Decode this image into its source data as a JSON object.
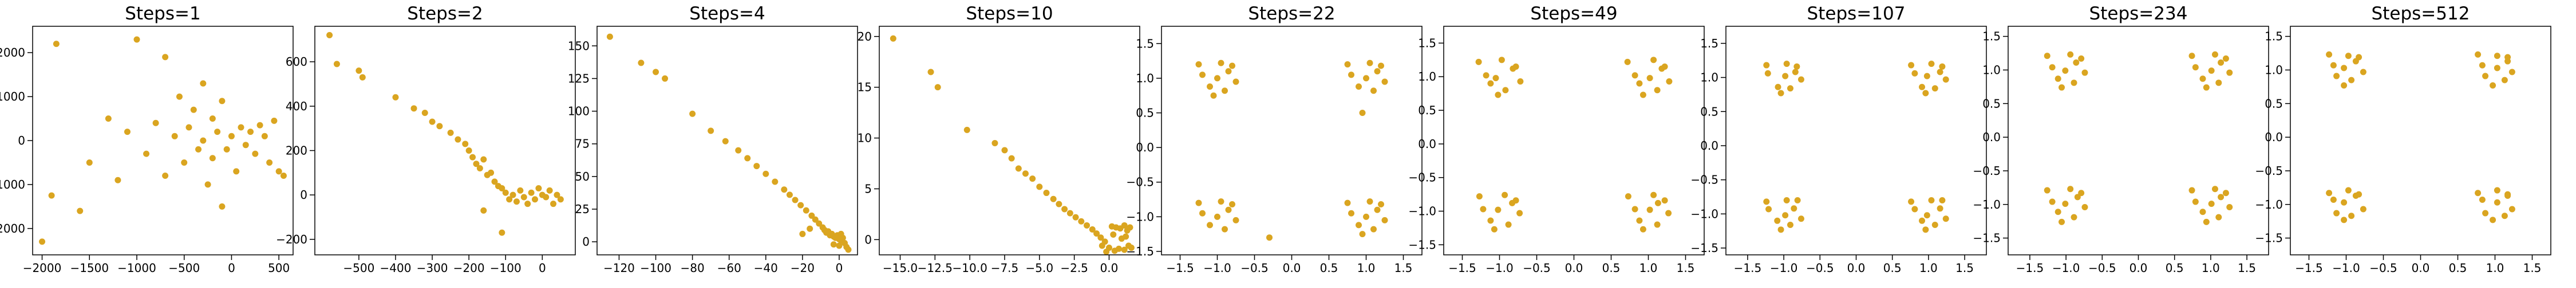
{
  "chart_data": [
    {
      "type": "scatter",
      "title": "Steps=1",
      "color": "#daa520",
      "xlim": [
        -2100,
        650
      ],
      "ylim": [
        -2600,
        2600
      ],
      "xticks": [
        {
          "value": -2000,
          "label": "−2000"
        },
        {
          "value": -1500,
          "label": "−1500"
        },
        {
          "value": -1000,
          "label": "−1000"
        },
        {
          "value": -500,
          "label": "−500"
        },
        0,
        500
      ],
      "yticks": [
        {
          "value": -2000,
          "label": "−2000"
        },
        {
          "value": -1000,
          "label": "−1000"
        },
        0,
        1000,
        2000
      ],
      "x": [
        -2000,
        -1850,
        -1000,
        -700,
        -1600,
        -1900,
        -1300,
        -1200,
        -900,
        -800,
        -700,
        -600,
        -550,
        -500,
        -450,
        -400,
        -350,
        -300,
        -300,
        -250,
        -200,
        -200,
        -150,
        -100,
        -100,
        -50,
        0,
        50,
        100,
        150,
        200,
        250,
        300,
        350,
        400,
        450,
        500,
        550,
        -1500,
        -1100
      ],
      "y": [
        -2300,
        2200,
        2300,
        1900,
        -1600,
        -1250,
        500,
        -900,
        -300,
        400,
        -800,
        100,
        1000,
        -500,
        300,
        700,
        -200,
        1300,
        0,
        -1000,
        500,
        -400,
        200,
        -1500,
        900,
        -200,
        100,
        -700,
        300,
        -100,
        200,
        -300,
        350,
        100,
        -500,
        450,
        -700,
        -800,
        -500,
        200
      ]
    },
    {
      "type": "scatter",
      "title": "Steps=2",
      "color": "#daa520",
      "xlim": [
        -620,
        90
      ],
      "ylim": [
        -270,
        760
      ],
      "xticks": [
        {
          "value": -500,
          "label": "−500"
        },
        {
          "value": -400,
          "label": "−400"
        },
        {
          "value": -300,
          "label": "−300"
        },
        {
          "value": -200,
          "label": "−200"
        },
        {
          "value": -100,
          "label": "−100"
        },
        0
      ],
      "yticks": [
        {
          "value": -200,
          "label": "−200"
        },
        0,
        200,
        400,
        600
      ],
      "x": [
        -580,
        -560,
        -500,
        -490,
        -400,
        -350,
        -320,
        -300,
        -280,
        -250,
        -230,
        -210,
        -200,
        -190,
        -180,
        -170,
        -160,
        -150,
        -140,
        -130,
        -120,
        -110,
        -100,
        -90,
        -80,
        -70,
        -60,
        -50,
        -40,
        -30,
        -20,
        -10,
        0,
        10,
        20,
        30,
        40,
        50,
        -160,
        -110
      ],
      "y": [
        720,
        590,
        560,
        530,
        440,
        390,
        370,
        330,
        310,
        280,
        250,
        230,
        200,
        170,
        140,
        120,
        160,
        90,
        100,
        60,
        40,
        30,
        10,
        -20,
        0,
        -30,
        20,
        -10,
        -40,
        10,
        -20,
        30,
        0,
        -10,
        20,
        -40,
        0,
        -20,
        -70,
        -170
      ]
    },
    {
      "type": "scatter",
      "title": "Steps=4",
      "color": "#daa520",
      "xlim": [
        -132,
        10
      ],
      "ylim": [
        -10,
        165
      ],
      "xticks": [
        {
          "value": -120,
          "label": "−120"
        },
        {
          "value": -100,
          "label": "−100"
        },
        {
          "value": -80,
          "label": "−80"
        },
        {
          "value": -60,
          "label": "−60"
        },
        {
          "value": -40,
          "label": "−40"
        },
        {
          "value": -20,
          "label": "−20"
        },
        0
      ],
      "yticks": [
        0,
        25,
        50,
        75,
        100,
        125,
        150
      ],
      "x": [
        -125,
        -108,
        -100,
        -95,
        -80,
        -70,
        -62,
        -55,
        -50,
        -45,
        -40,
        -35,
        -30,
        -27,
        -24,
        -21,
        -18,
        -15,
        -13,
        -11,
        -9,
        -8,
        -7,
        -6,
        -5,
        -4,
        -3,
        -2,
        -1,
        0,
        1,
        2,
        3,
        4,
        5,
        -20,
        -16,
        -3,
        0,
        1
      ],
      "y": [
        157,
        137,
        130,
        125,
        98,
        85,
        77,
        70,
        64,
        58,
        52,
        46,
        40,
        36,
        32,
        28,
        24,
        20,
        17,
        14,
        11,
        9,
        7,
        8,
        5,
        6,
        4,
        3,
        5,
        2,
        1,
        3,
        -1,
        -4,
        -6,
        6,
        10,
        -2,
        -3,
        6
      ]
    },
    {
      "type": "scatter",
      "title": "Steps=10",
      "color": "#daa520",
      "xlim": [
        -16.5,
        2.2
      ],
      "ylim": [
        -1.5,
        21
      ],
      "xticks": [
        {
          "value": -15,
          "label": "−15.0"
        },
        {
          "value": -12.5,
          "label": "−12.5"
        },
        {
          "value": -10,
          "label": "−10.0"
        },
        {
          "value": -7.5,
          "label": "−7.5"
        },
        {
          "value": -5,
          "label": "−5.0"
        },
        {
          "value": -2.5,
          "label": "−2.5"
        },
        {
          "value": 0,
          "label": "0.0"
        }
      ],
      "yticks": [
        0,
        5,
        10,
        15,
        20
      ],
      "x": [
        -15.5,
        -12.8,
        -12.3,
        -10.2,
        -8.2,
        -7.5,
        -7,
        -6.5,
        -6,
        -5.5,
        -5,
        -4.5,
        -4,
        -3.6,
        -3.2,
        -2.8,
        -2.4,
        -2,
        -1.6,
        -1.2,
        -0.9,
        -0.6,
        -0.3,
        0,
        0.2,
        0.5,
        0.8,
        1.1,
        1.3,
        1.5,
        1.4,
        1.1,
        0.7,
        0.4,
        1.6,
        -0.2,
        0.9,
        1.2,
        -0.5,
        0.3
      ],
      "y": [
        19.8,
        16.5,
        15,
        10.8,
        9.5,
        8.8,
        8,
        7,
        6.5,
        6,
        5.2,
        4.6,
        4,
        3.5,
        3,
        2.6,
        2.2,
        1.8,
        1.4,
        1,
        0.6,
        0.2,
        -0.2,
        -0.8,
        1.3,
        1.2,
        1.1,
        1.4,
        0.9,
        1.2,
        -0.6,
        -1,
        -0.9,
        -1.1,
        -0.8,
        -1.2,
        0.1,
        0.3,
        -0.6,
        0.5
      ]
    },
    {
      "type": "scatter",
      "title": "Steps=22",
      "color": "#daa520",
      "xlim": [
        -1.75,
        1.75
      ],
      "ylim": [
        -1.55,
        1.75
      ],
      "xticks": [
        {
          "value": -1.5,
          "label": "−1.5"
        },
        {
          "value": -1,
          "label": "−1.0"
        },
        {
          "value": -0.5,
          "label": "−0.5"
        },
        {
          "value": 0,
          "label": "0.0"
        },
        0.5,
        {
          "value": 1,
          "label": "1.0"
        },
        1.5
      ],
      "yticks": [
        {
          "value": -1.5,
          "label": "−1.5"
        },
        {
          "value": -1,
          "label": "−1.0"
        },
        {
          "value": -0.5,
          "label": "−0.5"
        },
        {
          "value": 0,
          "label": "0.0"
        },
        0.5,
        {
          "value": 1,
          "label": "1.0"
        },
        1.5
      ],
      "x": [
        -1.0,
        -0.85,
        -1.2,
        -0.9,
        -1.1,
        -0.75,
        -1.25,
        -0.95,
        -1.05,
        -0.8,
        1.0,
        1.15,
        0.8,
        1.1,
        0.9,
        1.25,
        0.75,
        1.05,
        0.95,
        1.2,
        -1.0,
        -0.85,
        -1.2,
        -0.9,
        -1.1,
        -0.75,
        -1.25,
        -0.95,
        -0.3,
        -0.8,
        1.0,
        1.15,
        0.8,
        1.1,
        0.9,
        1.25,
        0.75,
        1.05,
        0.95,
        1.2
      ],
      "y": [
        1.0,
        1.1,
        1.05,
        0.82,
        0.88,
        0.95,
        1.2,
        1.22,
        0.75,
        1.18,
        1.0,
        1.1,
        1.05,
        0.82,
        0.88,
        0.95,
        1.2,
        1.22,
        0.5,
        1.18,
        -1.0,
        -0.9,
        -0.95,
        -1.18,
        -1.12,
        -1.05,
        -0.8,
        -0.78,
        -1.3,
        -0.82,
        -1.0,
        -0.9,
        -0.95,
        -1.18,
        -1.12,
        -1.05,
        -0.8,
        -0.78,
        -1.25,
        -0.82
      ]
    },
    {
      "type": "scatter",
      "title": "Steps=49",
      "color": "#daa520",
      "xlim": [
        -1.75,
        1.75
      ],
      "ylim": [
        -1.65,
        1.75
      ],
      "xticks": [
        {
          "value": -1.5,
          "label": "−1.5"
        },
        {
          "value": -1,
          "label": "−1.0"
        },
        {
          "value": -0.5,
          "label": "−0.5"
        },
        {
          "value": 0,
          "label": "0.0"
        },
        0.5,
        {
          "value": 1,
          "label": "1.0"
        },
        1.5
      ],
      "yticks": [
        {
          "value": -1.5,
          "label": "−1.5"
        },
        {
          "value": -1,
          "label": "−1.0"
        },
        {
          "value": -0.5,
          "label": "−0.5"
        },
        {
          "value": 0,
          "label": "0.0"
        },
        0.5,
        {
          "value": 1,
          "label": "1.0"
        },
        1.5
      ],
      "x": [
        -1.05,
        -0.82,
        -1.18,
        -0.92,
        -1.12,
        -0.72,
        -1.28,
        -0.97,
        -1.02,
        -0.78,
        1.02,
        1.18,
        0.82,
        1.12,
        0.88,
        1.28,
        0.72,
        1.07,
        0.93,
        1.22,
        -1.02,
        -0.83,
        -1.22,
        -0.88,
        -1.12,
        -0.73,
        -1.27,
        -0.93,
        -1.07,
        -0.78,
        1.02,
        1.13,
        0.82,
        1.12,
        0.88,
        1.27,
        0.73,
        1.07,
        0.93,
        1.22
      ],
      "y": [
        0.98,
        1.12,
        1.02,
        0.8,
        0.9,
        0.93,
        1.22,
        1.25,
        0.73,
        1.15,
        0.98,
        1.12,
        1.02,
        0.8,
        0.9,
        0.93,
        1.22,
        1.25,
        0.73,
        1.15,
        -0.98,
        -0.88,
        -0.97,
        -1.2,
        -1.14,
        -1.03,
        -0.78,
        -0.76,
        -1.27,
        -0.84,
        -0.98,
        -0.88,
        -0.97,
        -1.2,
        -1.14,
        -1.03,
        -0.78,
        -0.76,
        -1.27,
        -0.84
      ]
    },
    {
      "type": "scatter",
      "title": "Steps=107",
      "color": "#daa520",
      "xlim": [
        -1.8,
        1.8
      ],
      "ylim": [
        -1.6,
        1.75
      ],
      "xticks": [
        {
          "value": -1.5,
          "label": "−1.5"
        },
        {
          "value": -1,
          "label": "−1.0"
        },
        {
          "value": -0.5,
          "label": "−0.5"
        },
        {
          "value": 0,
          "label": "0.0"
        },
        0.5,
        {
          "value": 1,
          "label": "1.0"
        },
        1.5
      ],
      "yticks": [
        {
          "value": -1.5,
          "label": "−1.5"
        },
        {
          "value": -1,
          "label": "−1.0"
        },
        {
          "value": -0.5,
          "label": "−0.5"
        },
        {
          "value": 0,
          "label": "0.0"
        },
        0.5,
        {
          "value": 1,
          "label": "1.0"
        },
        1.5
      ],
      "x": [
        -0.98,
        -0.84,
        -1.22,
        -0.91,
        -1.08,
        -0.76,
        -1.24,
        -0.96,
        -1.04,
        -0.82,
        0.98,
        1.16,
        0.81,
        1.09,
        0.91,
        1.24,
        0.76,
        1.04,
        0.96,
        1.19,
        -0.98,
        -0.86,
        -1.21,
        -0.91,
        -1.09,
        -0.76,
        -1.24,
        -0.96,
        -1.04,
        -0.81,
        0.98,
        1.16,
        0.81,
        1.09,
        0.91,
        1.24,
        0.76,
        1.04,
        0.96,
        1.19
      ],
      "y": [
        1.02,
        1.08,
        1.06,
        0.84,
        0.86,
        0.97,
        1.18,
        1.2,
        0.77,
        1.16,
        1.02,
        1.08,
        1.06,
        0.84,
        0.86,
        0.97,
        1.18,
        1.2,
        0.77,
        1.16,
        -1.02,
        -0.92,
        -0.93,
        -1.16,
        -1.1,
        -1.07,
        -0.82,
        -0.8,
        -1.23,
        -0.8,
        -1.02,
        -0.92,
        -0.93,
        -1.16,
        -1.1,
        -1.07,
        -0.82,
        -0.8,
        -1.23,
        -0.8
      ]
    },
    {
      "type": "scatter",
      "title": "Steps=234",
      "color": "#daa520",
      "xlim": [
        -1.8,
        1.8
      ],
      "ylim": [
        -1.75,
        1.65
      ],
      "xticks": [
        {
          "value": -1.5,
          "label": "−1.5"
        },
        {
          "value": -1,
          "label": "−1.0"
        },
        {
          "value": -0.5,
          "label": "−0.5"
        },
        {
          "value": 0,
          "label": "0.0"
        },
        0.5,
        {
          "value": 1,
          "label": "1.0"
        },
        1.5
      ],
      "yticks": [
        {
          "value": -1.5,
          "label": "−1.5"
        },
        {
          "value": -1,
          "label": "−1.0"
        },
        {
          "value": -0.5,
          "label": "−0.5"
        },
        {
          "value": 0,
          "label": "0.0"
        },
        0.5,
        {
          "value": 1,
          "label": "1.0"
        },
        1.5
      ],
      "x": [
        -1.01,
        -0.86,
        -1.19,
        -0.89,
        -1.11,
        -0.74,
        -1.26,
        -0.94,
        -1.06,
        -0.79,
        1.01,
        1.14,
        0.79,
        1.11,
        0.89,
        1.26,
        0.74,
        1.06,
        0.94,
        1.21,
        -1.01,
        -0.84,
        -1.19,
        -0.89,
        -1.11,
        -0.74,
        -1.26,
        -0.94,
        -1.06,
        -0.79,
        1.01,
        1.14,
        0.79,
        1.11,
        0.89,
        1.26,
        0.74,
        1.06,
        0.94,
        1.21
      ],
      "y": [
        0.99,
        1.11,
        1.04,
        0.81,
        0.87,
        0.96,
        1.21,
        1.23,
        0.74,
        1.17,
        0.99,
        1.11,
        1.04,
        0.81,
        0.87,
        0.96,
        1.21,
        1.23,
        0.74,
        1.17,
        -0.99,
        -0.89,
        -0.96,
        -1.19,
        -1.11,
        -1.04,
        -0.79,
        -0.77,
        -1.26,
        -0.83,
        -0.99,
        -0.89,
        -0.96,
        -1.19,
        -1.11,
        -1.04,
        -0.79,
        -0.77,
        -1.26,
        -0.83
      ]
    },
    {
      "type": "scatter",
      "title": "Steps=512",
      "color": "#daa520",
      "xlim": [
        -1.75,
        1.75
      ],
      "ylim": [
        -1.75,
        1.65
      ],
      "xticks": [
        {
          "value": -1.5,
          "label": "−1.5"
        },
        {
          "value": -1,
          "label": "−1.0"
        },
        {
          "value": -0.5,
          "label": "−0.5"
        },
        {
          "value": 0,
          "label": "0.0"
        },
        0.5,
        {
          "value": 1,
          "label": "1.0"
        },
        1.5
      ],
      "yticks": [
        {
          "value": -1.5,
          "label": "−1.5"
        },
        {
          "value": -1,
          "label": "−1.0"
        },
        {
          "value": -0.5,
          "label": "−0.5"
        },
        {
          "value": 0,
          "label": "0.0"
        },
        0.5,
        {
          "value": 1,
          "label": "1.0"
        },
        1.5
      ],
      "x": [
        -1.03,
        -0.87,
        -1.17,
        -0.93,
        -1.13,
        -0.77,
        -1.23,
        -0.97,
        -1.03,
        -0.83,
        1.03,
        1.17,
        0.83,
        1.13,
        0.87,
        1.23,
        0.77,
        1.03,
        0.97,
        1.17,
        -1.03,
        -0.87,
        -1.17,
        -0.93,
        -1.13,
        -0.77,
        -1.23,
        -0.97,
        -1.03,
        -0.83,
        1.03,
        1.17,
        0.83,
        1.13,
        0.87,
        1.23,
        0.77,
        1.03,
        0.97,
        1.17
      ],
      "y": [
        1.03,
        1.13,
        1.07,
        0.85,
        0.91,
        0.97,
        1.23,
        1.21,
        0.77,
        1.19,
        1.03,
        1.13,
        1.07,
        0.85,
        0.91,
        0.97,
        1.23,
        1.21,
        0.77,
        1.19,
        -0.97,
        -0.87,
        -0.93,
        -1.17,
        -1.13,
        -1.07,
        -0.83,
        -0.79,
        -1.23,
        -0.85,
        -0.97,
        -0.87,
        -0.93,
        -1.17,
        -1.13,
        -1.07,
        -0.83,
        -0.79,
        -1.23,
        -0.85
      ]
    }
  ]
}
